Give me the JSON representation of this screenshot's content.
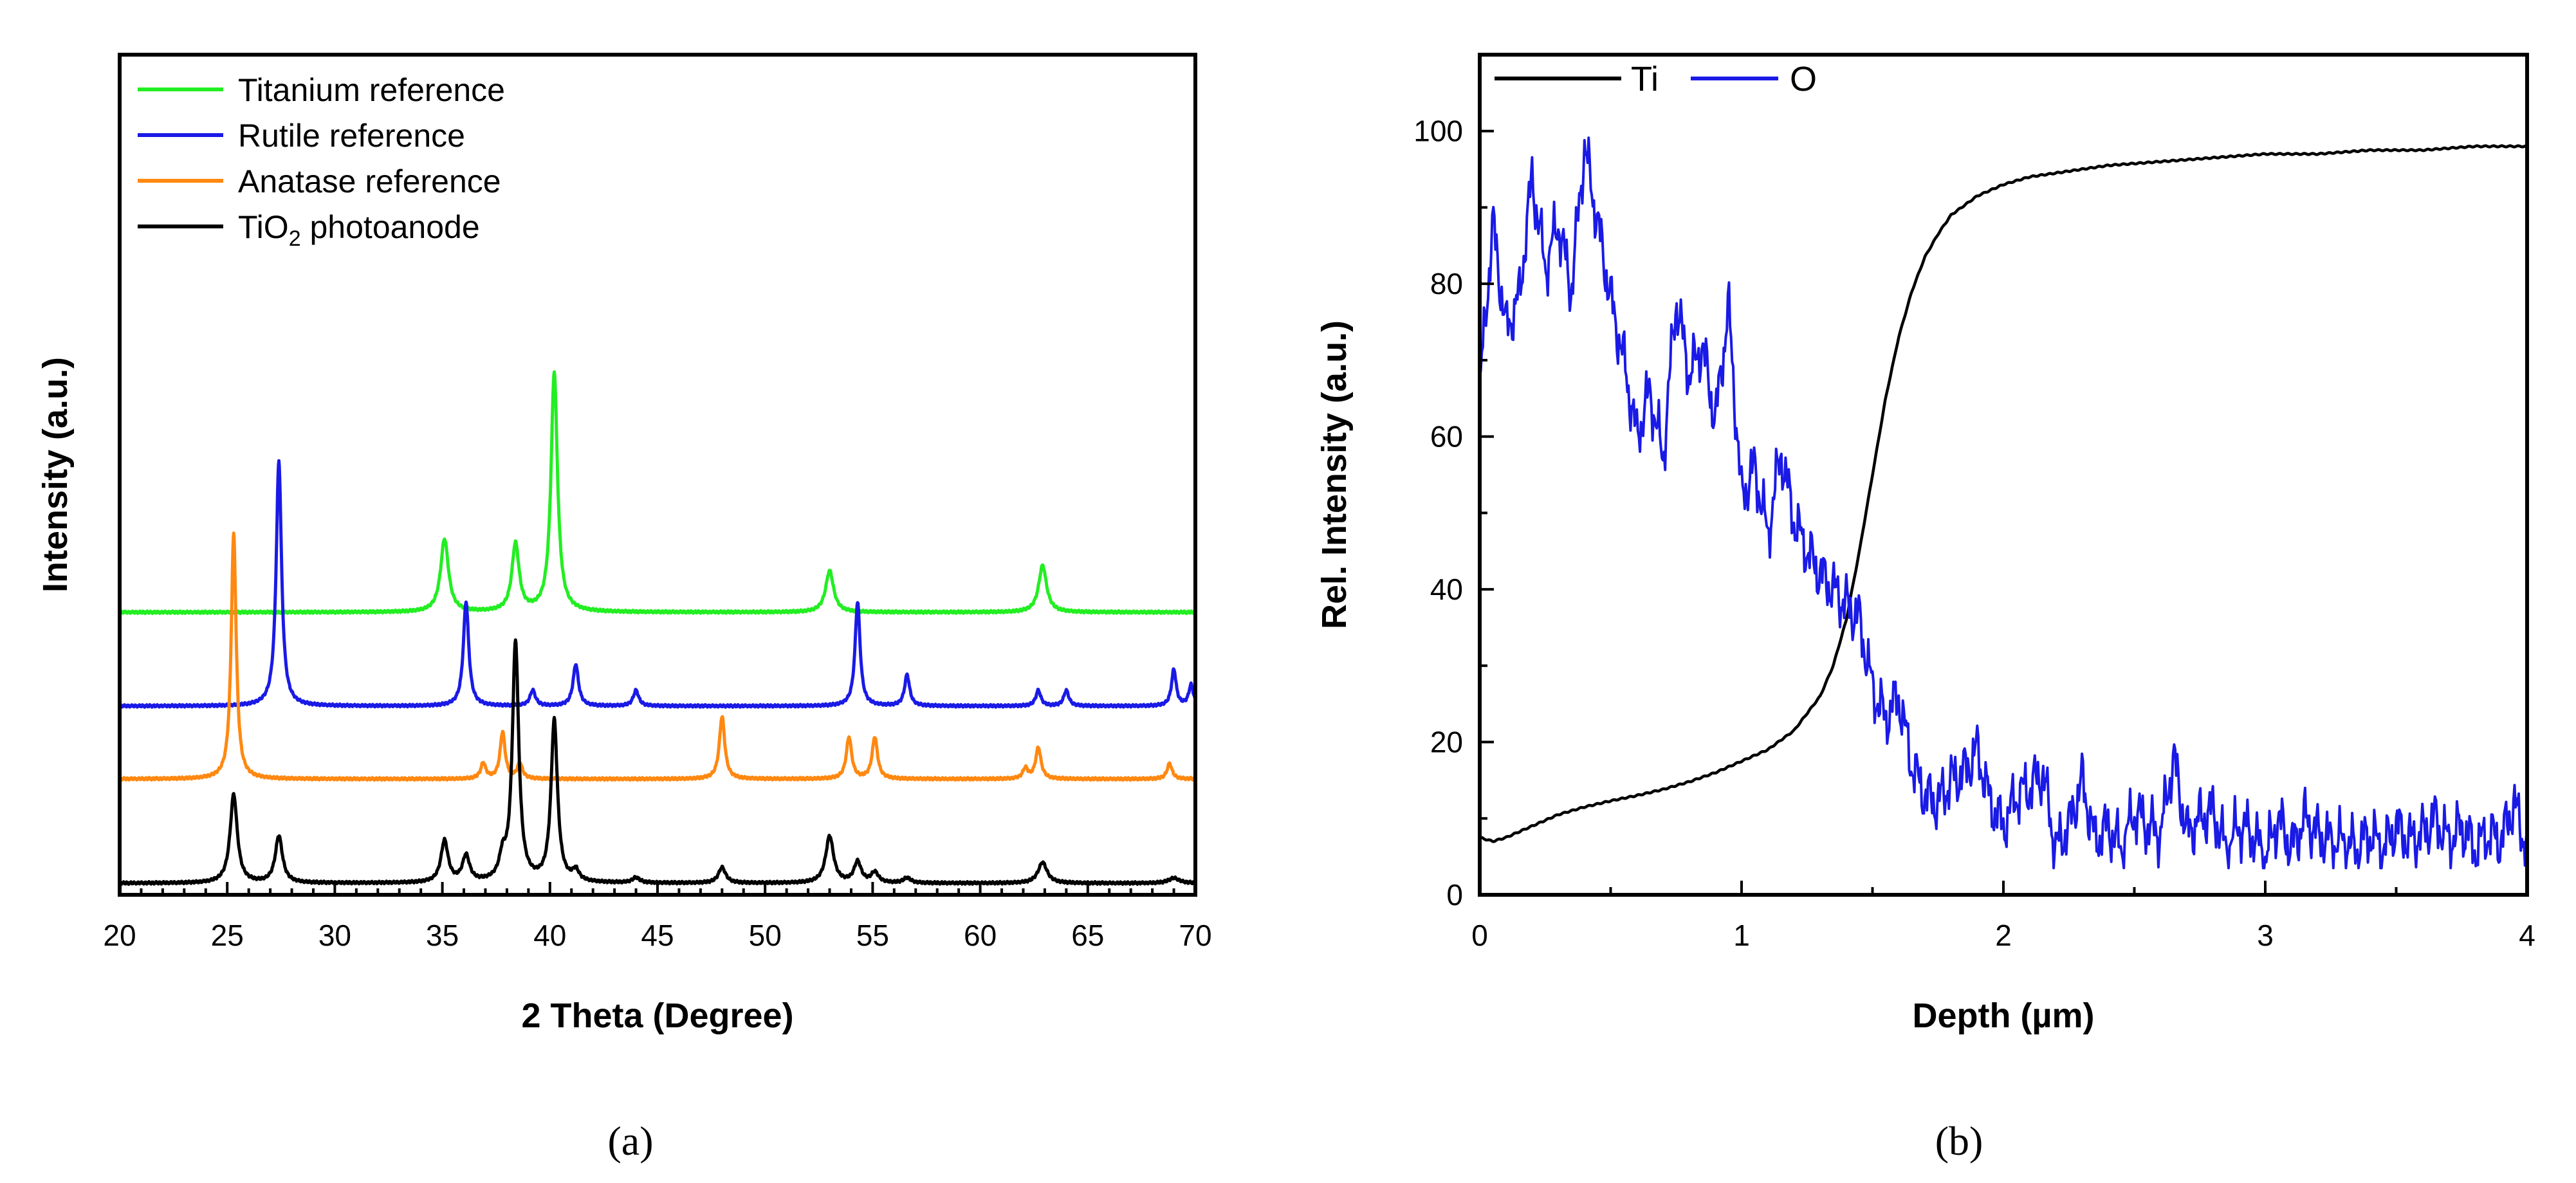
{
  "chart_data": [
    {
      "panel": "(a)",
      "type": "line",
      "title": "",
      "xlabel": "2 Theta (Degree)",
      "ylabel": "Intensity (a.u.)",
      "xlim": [
        20,
        70
      ],
      "xticks": [
        20,
        25,
        30,
        35,
        40,
        45,
        50,
        55,
        60,
        65,
        70
      ],
      "ylim": [
        0,
        100
      ],
      "yticks_visible": false,
      "legend_position": "top-left",
      "series": [
        {
          "name": "Titanium reference",
          "color": "#22ee22",
          "baseline": 52,
          "peaks": [
            [
              35.1,
              14,
              0.22
            ],
            [
              38.4,
              13,
              0.2
            ],
            [
              40.2,
              46,
              0.18
            ],
            [
              53.0,
              8,
              0.22
            ],
            [
              62.9,
              9,
              0.22
            ]
          ]
        },
        {
          "name": "Rutile reference",
          "color": "#1a1ae6",
          "baseline": 34,
          "peaks": [
            [
              27.4,
              47,
              0.15
            ],
            [
              36.1,
              20,
              0.15
            ],
            [
              39.2,
              3,
              0.15
            ],
            [
              41.2,
              8,
              0.15
            ],
            [
              44.0,
              3,
              0.15
            ],
            [
              54.3,
              20,
              0.14
            ],
            [
              56.6,
              6,
              0.14
            ],
            [
              62.7,
              3,
              0.14
            ],
            [
              64.0,
              3,
              0.14
            ],
            [
              69.0,
              7,
              0.13
            ],
            [
              69.8,
              4,
              0.13
            ]
          ]
        },
        {
          "name": "Anatase reference",
          "color": "#ff8811",
          "baseline": 20,
          "peaks": [
            [
              25.3,
              47,
              0.14
            ],
            [
              36.9,
              3,
              0.14
            ],
            [
              37.8,
              9,
              0.14
            ],
            [
              38.6,
              3,
              0.14
            ],
            [
              48.0,
              12,
              0.15
            ],
            [
              53.9,
              8,
              0.15
            ],
            [
              55.1,
              8,
              0.15
            ],
            [
              62.1,
              2,
              0.14
            ],
            [
              62.7,
              6,
              0.15
            ],
            [
              68.8,
              3,
              0.14
            ]
          ]
        },
        {
          "name_text": "TiO",
          "name_sub": "2",
          "name_rest": " photoanode",
          "color": "#000000",
          "baseline": 0,
          "peaks": [
            [
              25.3,
              17,
              0.2
            ],
            [
              27.4,
              9,
              0.2
            ],
            [
              35.1,
              8,
              0.2
            ],
            [
              36.1,
              5,
              0.2
            ],
            [
              37.8,
              4,
              0.18
            ],
            [
              38.4,
              46,
              0.18
            ],
            [
              40.2,
              31,
              0.18
            ],
            [
              41.2,
              2,
              0.18
            ],
            [
              44.0,
              1,
              0.2
            ],
            [
              48.0,
              3,
              0.2
            ],
            [
              53.0,
              9,
              0.22
            ],
            [
              54.3,
              4,
              0.2
            ],
            [
              55.1,
              2,
              0.2
            ],
            [
              56.6,
              1,
              0.2
            ],
            [
              62.9,
              4,
              0.25
            ],
            [
              69.0,
              1,
              0.3
            ]
          ]
        }
      ]
    },
    {
      "panel": "(b)",
      "type": "line",
      "title": "",
      "xlabel": "Depth (µm)",
      "ylabel": "Rel. Intensity (a.u.)",
      "xlim": [
        0,
        4
      ],
      "xticks": [
        0,
        1,
        2,
        3,
        4
      ],
      "ylim": [
        0,
        110
      ],
      "yticks": [
        0,
        20,
        40,
        60,
        80,
        100
      ],
      "legend_position": "top-left",
      "series": [
        {
          "name": "Ti",
          "color": "#000000",
          "x": [
            0,
            0.05,
            0.1,
            0.2,
            0.3,
            0.4,
            0.5,
            0.6,
            0.7,
            0.8,
            0.9,
            1.0,
            1.1,
            1.2,
            1.3,
            1.35,
            1.4,
            1.45,
            1.5,
            1.55,
            1.6,
            1.65,
            1.7,
            1.75,
            1.8,
            1.9,
            2.0,
            2.1,
            2.2,
            2.4,
            2.6,
            2.8,
            3.0,
            3.2,
            3.4,
            3.6,
            3.8,
            4.0
          ],
          "values": [
            7.5,
            7,
            7.5,
            9,
            10.5,
            11.5,
            12.3,
            13,
            13.8,
            14.8,
            16,
            17.5,
            19,
            21.5,
            26,
            30,
            36,
            45,
            55,
            65,
            73,
            79,
            83.5,
            86.5,
            89,
            91.5,
            93,
            94,
            94.5,
            95.5,
            96,
            96.5,
            97,
            97,
            97.5,
            97.5,
            98,
            98
          ]
        },
        {
          "name": "O",
          "color": "#1a1ae6",
          "x": [
            0,
            0.05,
            0.1,
            0.15,
            0.2,
            0.25,
            0.3,
            0.35,
            0.4,
            0.45,
            0.5,
            0.55,
            0.6,
            0.65,
            0.7,
            0.75,
            0.8,
            0.85,
            0.9,
            0.95,
            1.0,
            1.05,
            1.1,
            1.15,
            1.2,
            1.25,
            1.3,
            1.35,
            1.4,
            1.45,
            1.5,
            1.55,
            1.6,
            1.65,
            1.7,
            1.75,
            1.8,
            1.85,
            1.9,
            1.95,
            2.0,
            2.05,
            2.1,
            2.15,
            2.2,
            2.25,
            2.3,
            2.35,
            2.4,
            2.45,
            2.5,
            2.55,
            2.6,
            2.65,
            2.7,
            2.75,
            2.8,
            2.85,
            2.9,
            2.95,
            3.0,
            3.05,
            3.1,
            3.15,
            3.2,
            3.25,
            3.3,
            3.35,
            3.4,
            3.45,
            3.5,
            3.55,
            3.6,
            3.65,
            3.7,
            3.75,
            3.8,
            3.85,
            3.9,
            3.95,
            4.0
          ],
          "values": [
            66,
            88,
            74,
            78,
            94,
            82,
            88,
            79,
            98,
            88,
            78,
            70,
            60,
            66,
            57,
            78,
            68,
            72,
            62,
            77,
            52,
            56,
            47,
            58,
            49,
            45,
            42,
            40,
            38,
            36,
            27,
            23,
            26,
            17,
            13,
            12,
            15,
            16,
            19,
            12,
            9,
            13,
            14,
            16,
            6,
            9,
            15,
            7,
            9,
            6,
            11,
            9,
            8,
            18,
            8,
            10,
            11,
            6,
            9,
            8,
            5,
            10,
            6,
            10,
            8,
            7,
            7,
            6,
            8,
            6,
            9,
            7,
            8,
            10,
            7,
            9,
            6,
            8,
            7,
            12,
            6
          ]
        }
      ]
    }
  ]
}
